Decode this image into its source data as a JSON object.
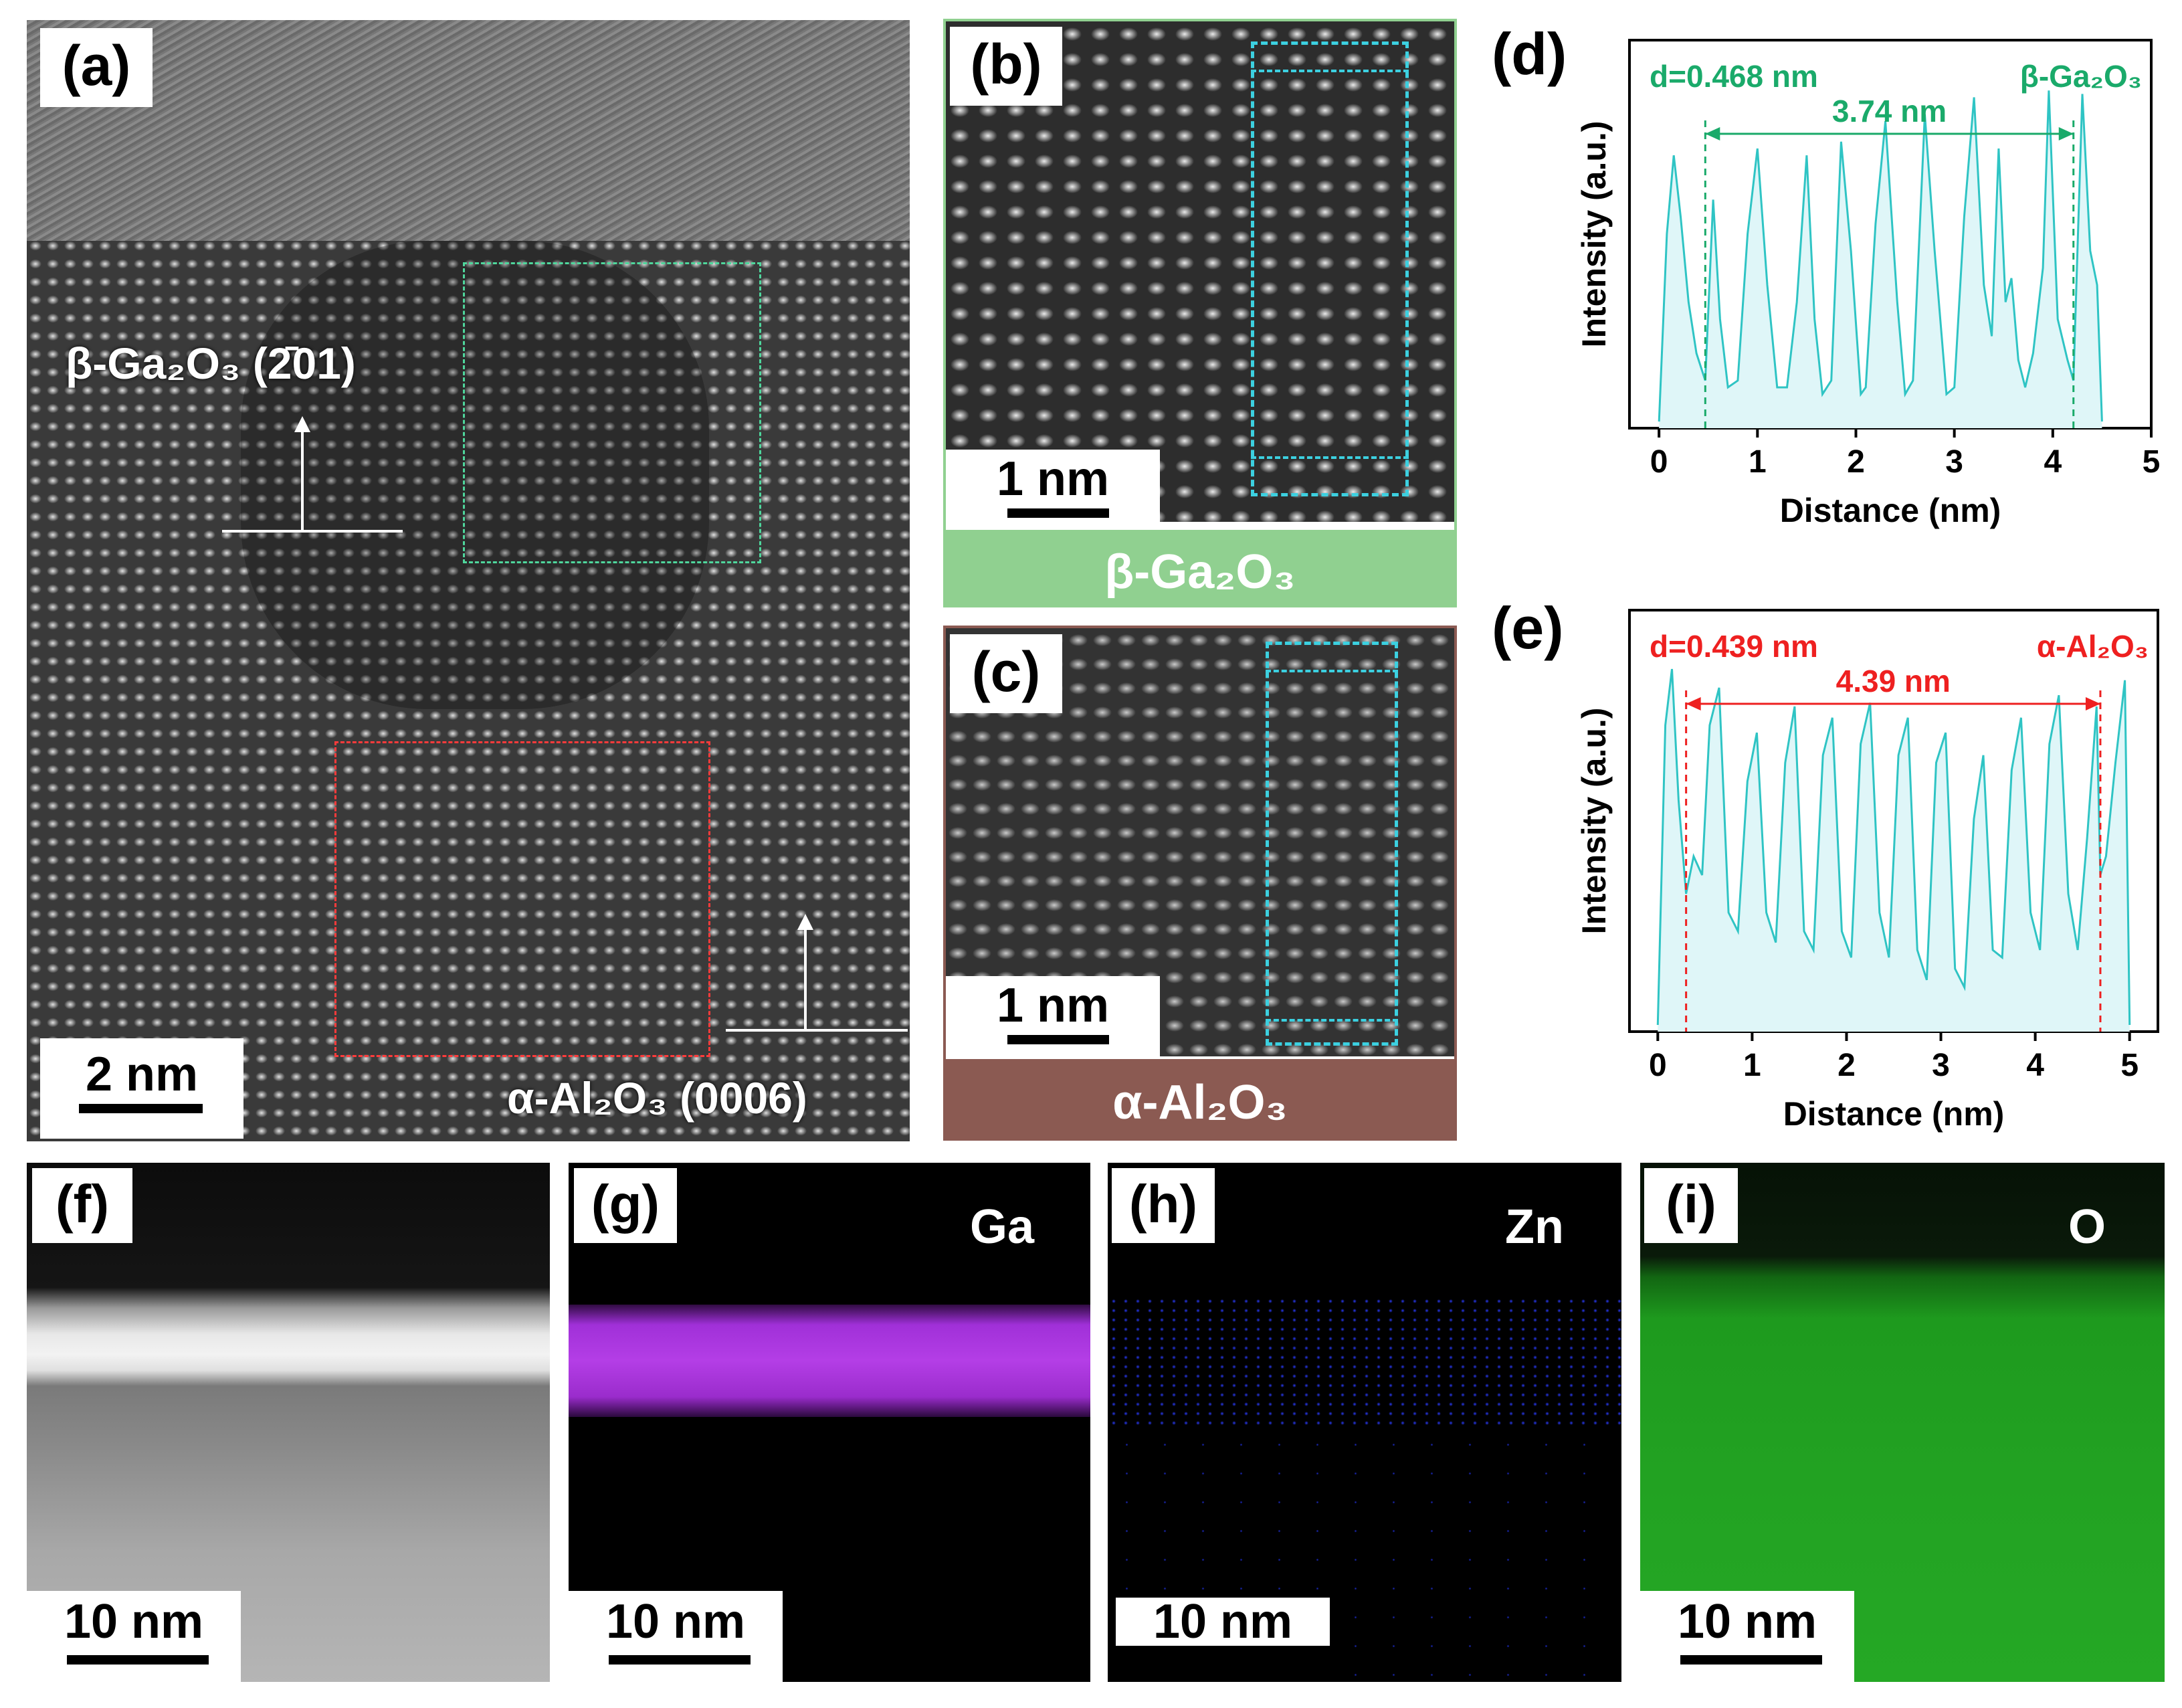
{
  "panels": {
    "a": {
      "tag": "(a)",
      "beta_label": "β-Ga₂O₃ (2̄01)",
      "alpha_label": "α-Al₂O₃ (0006)",
      "scale": "2 nm"
    },
    "b": {
      "tag": "(b)",
      "scale": "1 nm",
      "banner": "β-Ga₂O₃",
      "banner_color": "#90d090"
    },
    "c": {
      "tag": "(c)",
      "scale": "1 nm",
      "banner": "α-Al₂O₃",
      "banner_color": "#8b5a52"
    },
    "d": {
      "tag": "(d)"
    },
    "e": {
      "tag": "(e)"
    },
    "f": {
      "tag": "(f)",
      "scale": "10 nm"
    },
    "g": {
      "tag": "(g)",
      "element": "Ga",
      "scale": "10 nm"
    },
    "h": {
      "tag": "(h)",
      "element": "Zn",
      "scale": "10 nm"
    },
    "i": {
      "tag": "(i)",
      "element": "O",
      "scale": "10 nm"
    }
  },
  "chart_data": [
    {
      "id": "d",
      "type": "line",
      "xlabel": "Distance (nm)",
      "ylabel": "Intensity (a.u.)",
      "xlim": [
        -0.3,
        5
      ],
      "xticks": [
        "0",
        "1",
        "2",
        "3",
        "4",
        "5"
      ],
      "annotation_left": "d=0.468 nm",
      "annotation_right": "β-Ga₂O₃",
      "span_label": "3.74 nm",
      "span": [
        0.47,
        4.21
      ],
      "color": "#2fc4c4",
      "accent": "#1aaa6a",
      "x": [
        0.0,
        0.08,
        0.15,
        0.22,
        0.3,
        0.38,
        0.47,
        0.55,
        0.62,
        0.7,
        0.8,
        0.9,
        1.0,
        1.1,
        1.2,
        1.3,
        1.4,
        1.5,
        1.58,
        1.66,
        1.75,
        1.85,
        1.95,
        2.05,
        2.1,
        2.2,
        2.3,
        2.42,
        2.5,
        2.58,
        2.7,
        2.8,
        2.92,
        3.0,
        3.1,
        3.2,
        3.3,
        3.38,
        3.45,
        3.52,
        3.58,
        3.65,
        3.72,
        3.8,
        3.9,
        3.96,
        4.05,
        4.15,
        4.21,
        4.3,
        4.38,
        4.45,
        4.5
      ],
      "y": [
        0.0,
        0.55,
        0.78,
        0.6,
        0.35,
        0.2,
        0.12,
        0.65,
        0.3,
        0.1,
        0.12,
        0.55,
        0.8,
        0.4,
        0.1,
        0.1,
        0.35,
        0.78,
        0.3,
        0.08,
        0.12,
        0.82,
        0.5,
        0.08,
        0.1,
        0.58,
        0.88,
        0.35,
        0.08,
        0.12,
        0.9,
        0.5,
        0.08,
        0.1,
        0.6,
        0.95,
        0.4,
        0.25,
        0.8,
        0.35,
        0.42,
        0.18,
        0.1,
        0.2,
        0.45,
        0.97,
        0.3,
        0.18,
        0.12,
        0.96,
        0.5,
        0.4,
        0.0
      ]
    },
    {
      "id": "e",
      "type": "line",
      "xlabel": "Distance (nm)",
      "ylabel": "Intensity (a.u.)",
      "xlim": [
        -0.3,
        5.3
      ],
      "xticks": [
        "0",
        "1",
        "2",
        "3",
        "4",
        "5"
      ],
      "annotation_left": "d=0.439 nm",
      "annotation_right": "α-Al₂O₃",
      "span_label": "4.39 nm",
      "span": [
        0.3,
        4.69
      ],
      "color": "#2fc4c4",
      "accent": "#ee2020",
      "x": [
        0.0,
        0.08,
        0.15,
        0.22,
        0.3,
        0.38,
        0.47,
        0.55,
        0.65,
        0.75,
        0.85,
        0.95,
        1.05,
        1.15,
        1.25,
        1.35,
        1.45,
        1.55,
        1.65,
        1.75,
        1.85,
        1.95,
        2.05,
        2.15,
        2.25,
        2.35,
        2.45,
        2.55,
        2.65,
        2.75,
        2.85,
        2.95,
        3.05,
        3.15,
        3.25,
        3.35,
        3.45,
        3.55,
        3.65,
        3.75,
        3.85,
        3.95,
        4.05,
        4.15,
        4.25,
        4.35,
        4.45,
        4.55,
        4.65,
        4.69,
        4.75,
        4.85,
        4.95,
        5.0
      ],
      "y": [
        0.0,
        0.8,
        0.95,
        0.6,
        0.35,
        0.45,
        0.4,
        0.8,
        0.9,
        0.3,
        0.25,
        0.65,
        0.78,
        0.3,
        0.22,
        0.7,
        0.85,
        0.25,
        0.2,
        0.72,
        0.82,
        0.25,
        0.18,
        0.75,
        0.86,
        0.3,
        0.18,
        0.72,
        0.82,
        0.2,
        0.12,
        0.7,
        0.78,
        0.15,
        0.1,
        0.55,
        0.72,
        0.2,
        0.18,
        0.68,
        0.82,
        0.3,
        0.2,
        0.75,
        0.88,
        0.35,
        0.2,
        0.5,
        0.85,
        0.4,
        0.45,
        0.7,
        0.92,
        0.0
      ]
    }
  ]
}
